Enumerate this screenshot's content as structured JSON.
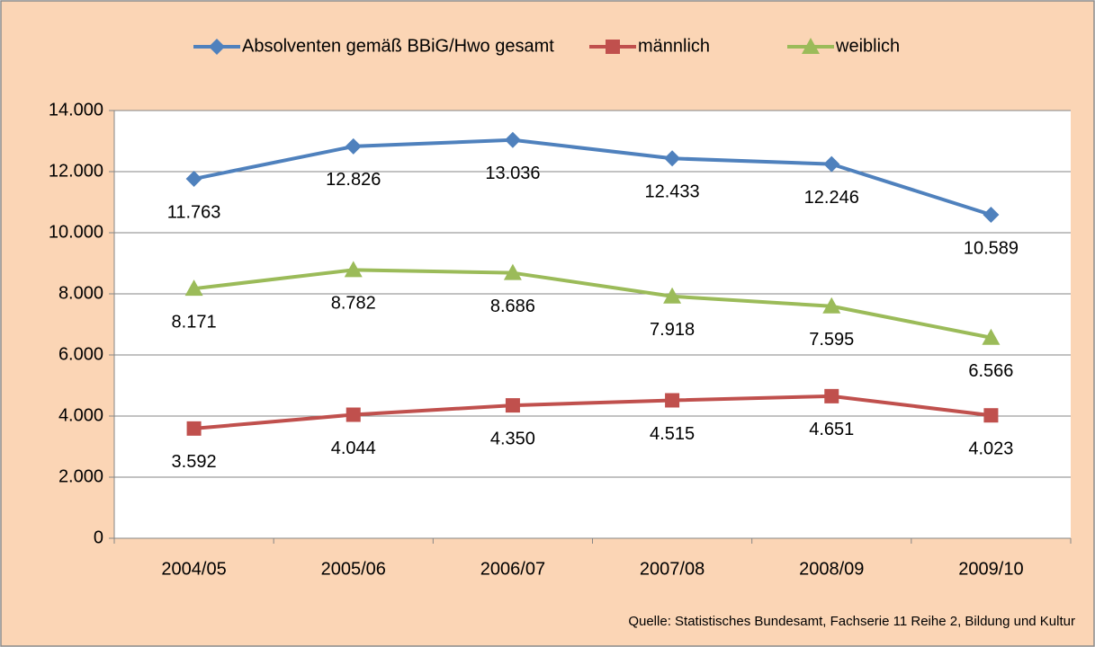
{
  "chart_data": {
    "type": "line",
    "categories": [
      "2004/05",
      "2005/06",
      "2006/07",
      "2007/08",
      "2008/09",
      "2009/10"
    ],
    "series": [
      {
        "name": "Absolventen gemäß BBiG/Hwo gesamt",
        "color": "#4f81bd",
        "marker": "diamond",
        "values": [
          11763,
          12826,
          13036,
          12433,
          12246,
          10589
        ],
        "value_labels": [
          "11.763",
          "12.826",
          "13.036",
          "12.433",
          "12.246",
          "10.589"
        ]
      },
      {
        "name": "männlich",
        "color": "#c0504d",
        "marker": "square",
        "values": [
          3592,
          4044,
          4350,
          4515,
          4651,
          4023
        ],
        "value_labels": [
          "3.592",
          "4.044",
          "4.350",
          "4.515",
          "4.651",
          "4.023"
        ]
      },
      {
        "name": "weiblich",
        "color": "#9bbb59",
        "marker": "triangle",
        "values": [
          8171,
          8782,
          8686,
          7918,
          7595,
          6566
        ],
        "value_labels": [
          "8.171",
          "8.782",
          "8.686",
          "7.918",
          "7.595",
          "6.566"
        ]
      }
    ],
    "ylim": [
      0,
      14000
    ],
    "yticks": [
      0,
      {
        "value": 2000,
        "label": "2.000"
      },
      {
        "value": 4000,
        "label": "4.000"
      },
      {
        "value": 6000,
        "label": "6.000"
      },
      {
        "value": 8000,
        "label": "8.000"
      },
      {
        "value": 10000,
        "label": "10.000"
      },
      {
        "value": 12000,
        "label": "12.000"
      },
      {
        "value": 14000,
        "label": "14.000"
      }
    ],
    "grid": true,
    "legend": "top",
    "source": "Quelle: Statistisches Bundesamt, Fachserie 11 Reihe 2, Bildung und Kultur"
  }
}
